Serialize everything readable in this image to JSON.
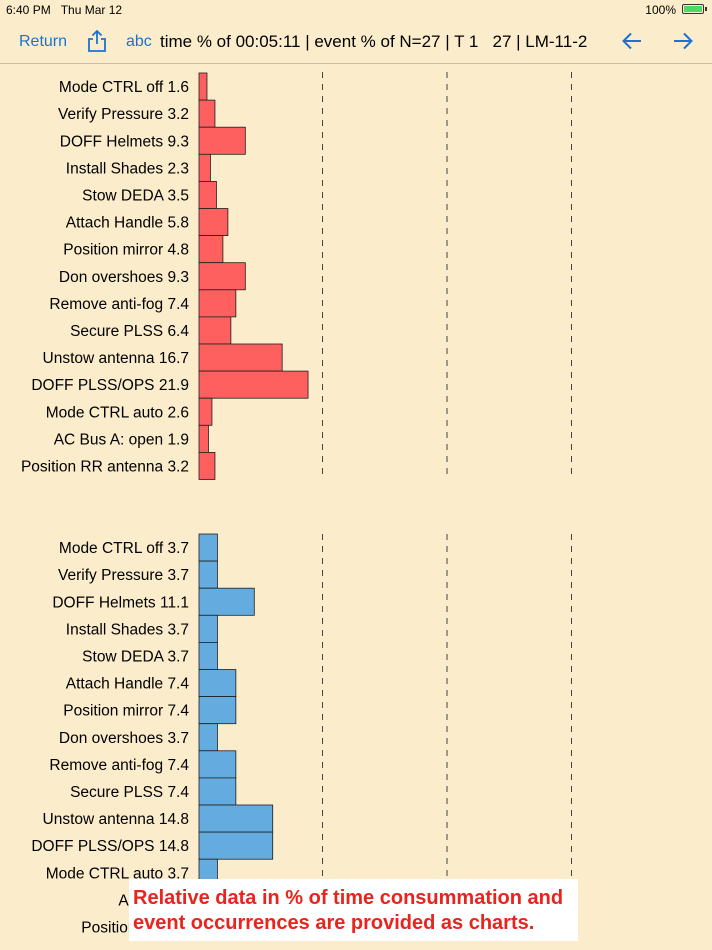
{
  "status_bar": {
    "time": "6:40 PM",
    "date": "Thu Mar 12",
    "battery": "100%"
  },
  "nav": {
    "return_label": "Return",
    "share_icon": "share-icon",
    "abc_label": "abc",
    "title": "time % of 00:05:11 | event % of N=27 | T 1   27 | LM-11-2",
    "prev_icon": "arrow-left-icon",
    "next_icon": "arrow-right-icon"
  },
  "caption": {
    "line1": "Relative data in % of time consummation and",
    "line2": "event occurrences are provided as charts."
  },
  "colors": {
    "accent": "#1a73d4",
    "time_bar": "#fe6060",
    "event_bar": "#64acdf",
    "background": "#fbeccb",
    "caption_text": "#e8241c"
  },
  "chart_data": [
    {
      "type": "bar",
      "orientation": "horizontal",
      "categories": [
        "Mode CTRL off",
        "Verify Pressure",
        "DOFF Helmets",
        "Install Shades",
        "Stow DEDA",
        "Attach Handle",
        "Position mirror",
        "Don overshoes",
        "Remove anti-fog",
        "Secure PLSS",
        "Unstow antenna",
        "DOFF PLSS/OPS",
        "Mode CTRL auto",
        "AC Bus A: open",
        "Position RR antenna"
      ],
      "values": [
        1.6,
        3.2,
        9.3,
        2.3,
        3.5,
        5.8,
        4.8,
        9.3,
        7.4,
        6.4,
        16.7,
        21.9,
        2.6,
        1.9,
        3.2
      ],
      "value_labels": [
        "1.6",
        "3.2",
        "9.3",
        "2.3",
        "3.5",
        "5.8",
        "4.8",
        "9.3",
        "7.4",
        "6.4",
        "16.7",
        "21.9",
        "2.6",
        "1.9",
        "3.2"
      ],
      "xlim": [
        0,
        75
      ],
      "gridlines": [
        25,
        50,
        75
      ],
      "grid": true,
      "color": "#fe6060"
    },
    {
      "type": "bar",
      "orientation": "horizontal",
      "categories": [
        "Mode CTRL off",
        "Verify Pressure",
        "DOFF Helmets",
        "Install Shades",
        "Stow DEDA",
        "Attach Handle",
        "Position mirror",
        "Don overshoes",
        "Remove anti-fog",
        "Secure PLSS",
        "Unstow antenna",
        "DOFF PLSS/OPS",
        "Mode CTRL auto",
        "AC Bus A:",
        "Position RR ant"
      ],
      "values": [
        3.7,
        3.7,
        11.1,
        3.7,
        3.7,
        7.4,
        7.4,
        3.7,
        7.4,
        7.4,
        14.8,
        14.8,
        3.7,
        3.7,
        3.7
      ],
      "value_labels": [
        "3.7",
        "3.7",
        "11.1",
        "3.7",
        "3.7",
        "7.4",
        "7.4",
        "3.7",
        "7.4",
        "7.4",
        "14.8",
        "14.8",
        "3.7",
        "",
        ""
      ],
      "xlim": [
        0,
        75
      ],
      "gridlines": [
        25,
        50,
        75
      ],
      "grid": true,
      "color": "#64acdf"
    }
  ]
}
